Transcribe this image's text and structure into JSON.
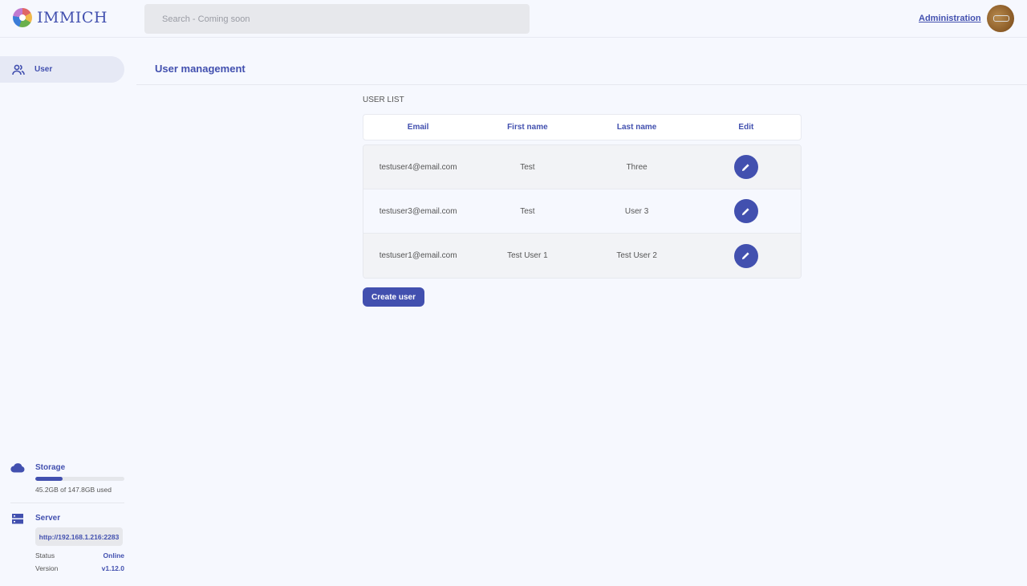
{
  "header": {
    "logo_text": "IMMICH",
    "search_placeholder": "Search - Coming soon",
    "admin_link": "Administration"
  },
  "sidebar": {
    "items": [
      {
        "label": "User",
        "icon": "users-icon",
        "active": true
      }
    ]
  },
  "main": {
    "title": "User management",
    "list_label": "USER LIST",
    "columns": [
      "Email",
      "First name",
      "Last name",
      "Edit"
    ],
    "rows": [
      {
        "email": "testuser4@email.com",
        "first": "Test",
        "last": "Three"
      },
      {
        "email": "testuser3@email.com",
        "first": "Test",
        "last": "User 3"
      },
      {
        "email": "testuser1@email.com",
        "first": "Test User 1",
        "last": "Test User 2"
      }
    ],
    "create_label": "Create user"
  },
  "storage": {
    "title": "Storage",
    "used_text": "45.2GB of 147.8GB used",
    "used_fraction": 0.306
  },
  "server": {
    "title": "Server",
    "url": "http://192.168.1.216:2283",
    "status_label": "Status",
    "status": "Online",
    "version_label": "Version",
    "version": "v1.12.0"
  },
  "colors": {
    "primary": "#4250af",
    "background": "#f6f8fe"
  }
}
